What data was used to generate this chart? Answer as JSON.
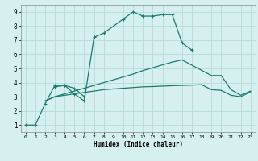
{
  "xlabel": "Humidex (Indice chaleur)",
  "ylabel": "",
  "background_color": "#d6f0f0",
  "grid_color": "#b8dada",
  "line_color": "#1a7a6e",
  "xlim": [
    -0.5,
    23.5
  ],
  "ylim": [
    0.5,
    9.5
  ],
  "xticks": [
    0,
    1,
    2,
    3,
    4,
    5,
    6,
    7,
    8,
    9,
    10,
    11,
    12,
    13,
    14,
    15,
    16,
    17,
    18,
    19,
    20,
    21,
    22,
    23
  ],
  "yticks": [
    1,
    2,
    3,
    4,
    5,
    6,
    7,
    8,
    9
  ],
  "line1_x": [
    0,
    1,
    2,
    3,
    4,
    5,
    6,
    7,
    8,
    10,
    11,
    12,
    13,
    14,
    15,
    16,
    17
  ],
  "line1_y": [
    1,
    1,
    2.5,
    3.8,
    3.8,
    3.2,
    2.7,
    7.2,
    7.5,
    8.5,
    9.0,
    8.7,
    8.7,
    8.8,
    8.8,
    6.8,
    6.3
  ],
  "line2_x": [
    3,
    4,
    5,
    6
  ],
  "line2_y": [
    3.7,
    3.8,
    3.6,
    3.0
  ],
  "line3_x": [
    2,
    3,
    4,
    5,
    6,
    7,
    8,
    9,
    10,
    11,
    12,
    13,
    14,
    15,
    16,
    17,
    18,
    19,
    20,
    21,
    22,
    23
  ],
  "line3_y": [
    2.7,
    3.0,
    3.1,
    3.2,
    3.3,
    3.4,
    3.5,
    3.55,
    3.6,
    3.65,
    3.7,
    3.72,
    3.75,
    3.78,
    3.8,
    3.82,
    3.85,
    3.5,
    3.45,
    3.1,
    3.0,
    3.35
  ],
  "line4_x": [
    2,
    3,
    4,
    5,
    6,
    7,
    8,
    9,
    10,
    11,
    12,
    13,
    14,
    15,
    16,
    19,
    20,
    21,
    22,
    23
  ],
  "line4_y": [
    2.7,
    3.0,
    3.2,
    3.4,
    3.6,
    3.8,
    4.0,
    4.2,
    4.4,
    4.6,
    4.85,
    5.05,
    5.25,
    5.45,
    5.6,
    4.5,
    4.5,
    3.5,
    3.1,
    3.4
  ]
}
